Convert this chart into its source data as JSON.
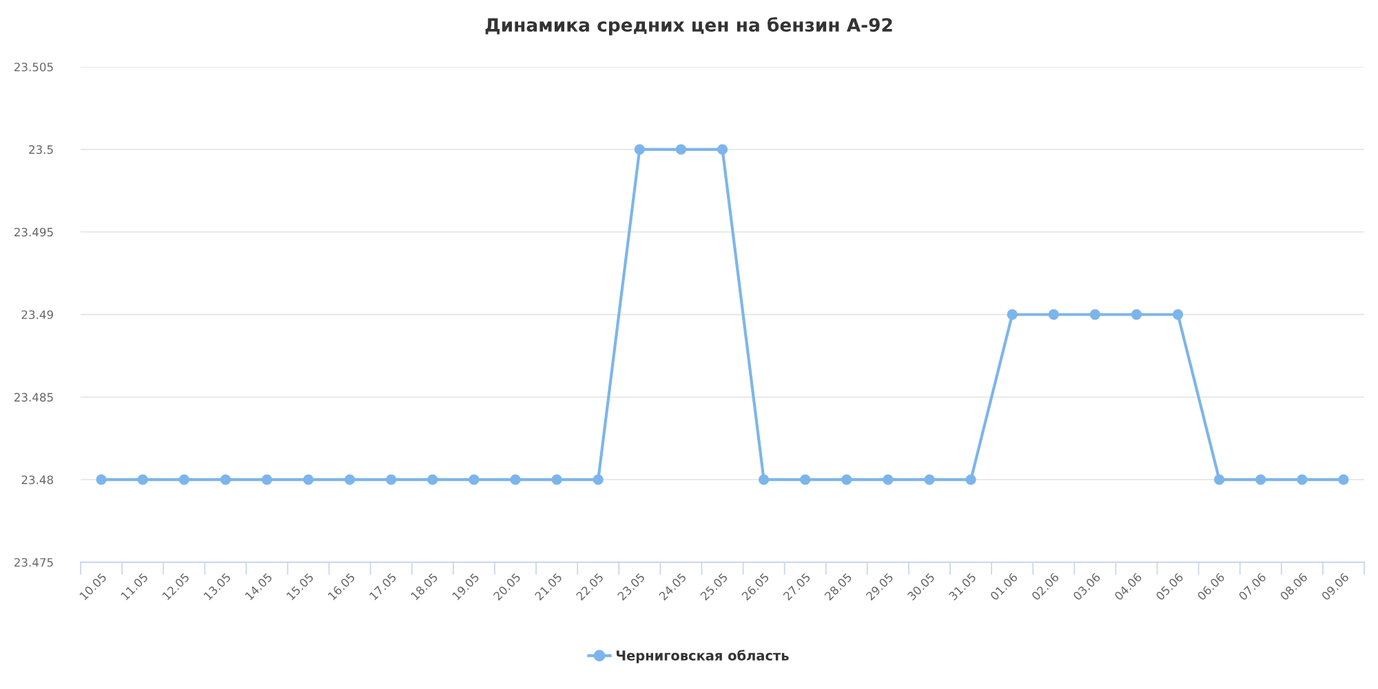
{
  "chart_data": {
    "type": "line",
    "title": "Динамика средних цен на бензин А-92",
    "categories": [
      "10.05",
      "11.05",
      "12.05",
      "13.05",
      "14.05",
      "15.05",
      "16.05",
      "17.05",
      "18.05",
      "19.05",
      "20.05",
      "21.05",
      "22.05",
      "23.05",
      "24.05",
      "25.05",
      "26.05",
      "27.05",
      "28.05",
      "29.05",
      "30.05",
      "31.05",
      "01.06",
      "02.06",
      "03.06",
      "04.06",
      "05.06",
      "06.06",
      "07.06",
      "08.06",
      "09.06"
    ],
    "series": [
      {
        "name": "Черниговская область",
        "color": "#7cb5ec",
        "values": [
          23.48,
          23.48,
          23.48,
          23.48,
          23.48,
          23.48,
          23.48,
          23.48,
          23.48,
          23.48,
          23.48,
          23.48,
          23.48,
          23.5,
          23.5,
          23.5,
          23.48,
          23.48,
          23.48,
          23.48,
          23.48,
          23.48,
          23.49,
          23.49,
          23.49,
          23.49,
          23.49,
          23.48,
          23.48,
          23.48,
          23.48
        ]
      }
    ],
    "ylim": [
      23.475,
      23.505
    ],
    "yticks": [
      23.475,
      23.48,
      23.485,
      23.49,
      23.495,
      23.5,
      23.505
    ],
    "grid": "y",
    "legend": "bottom",
    "marker": "circle",
    "line_style": "solid"
  }
}
